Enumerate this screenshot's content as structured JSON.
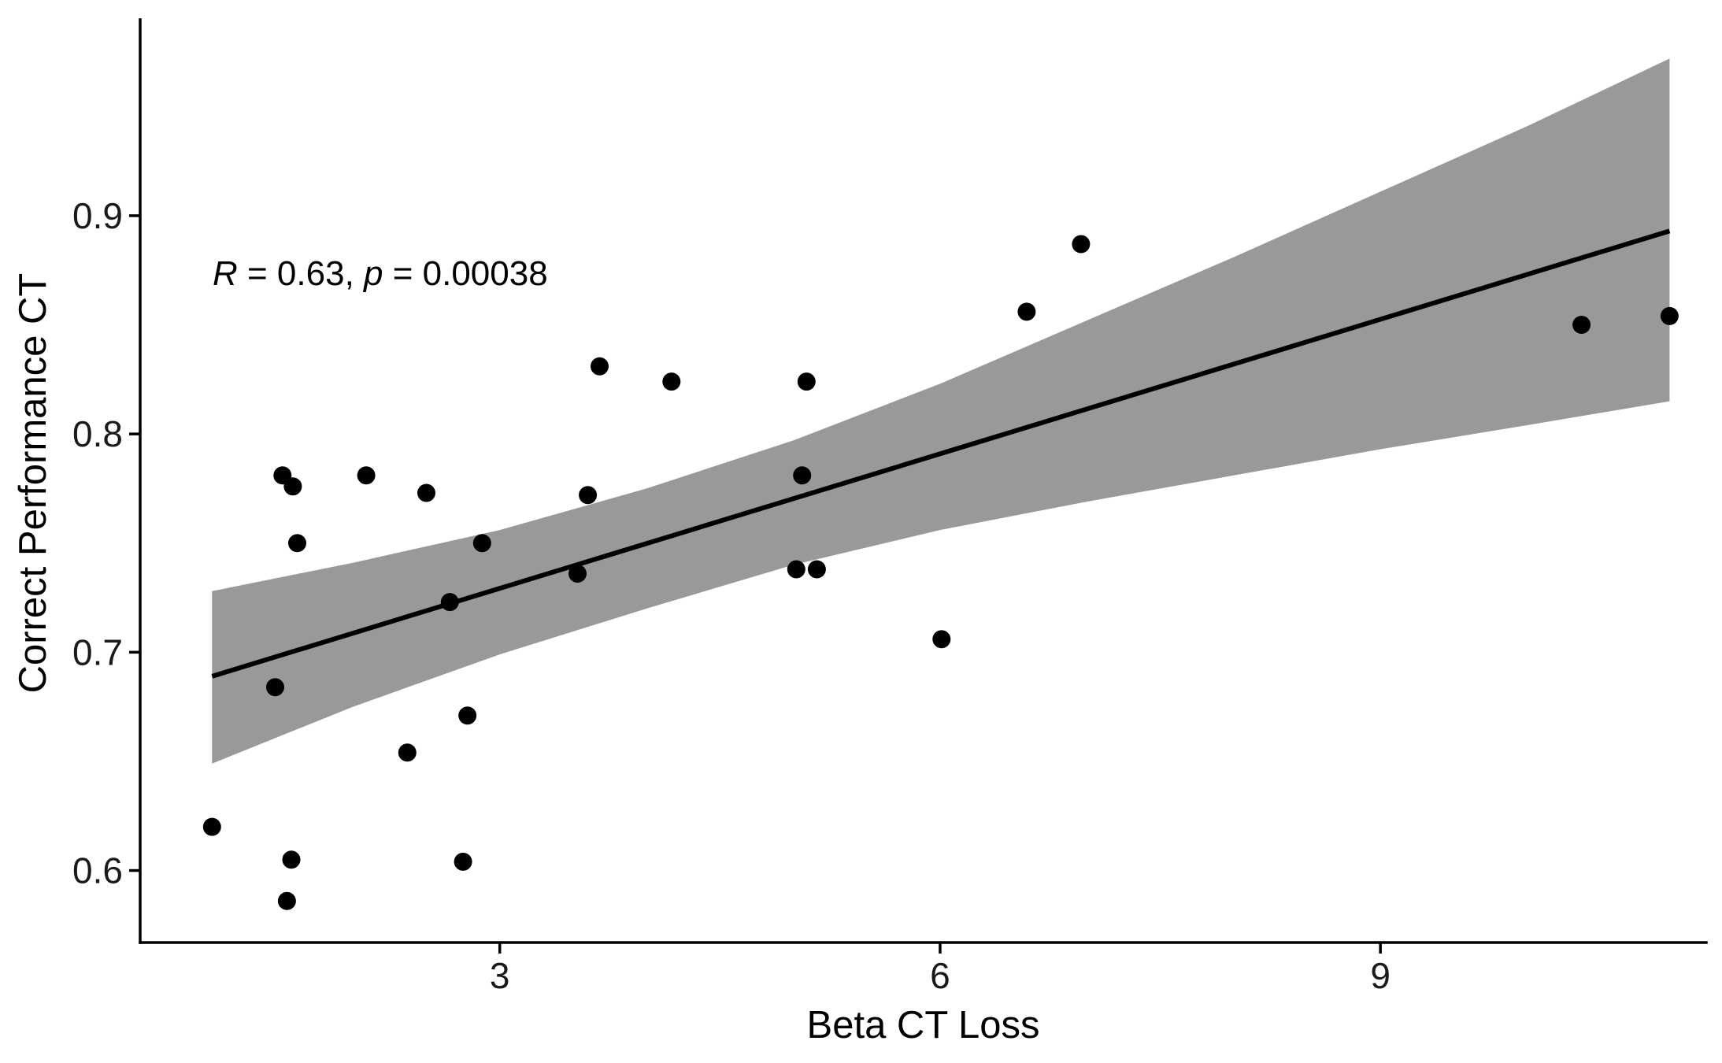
{
  "chart_data": {
    "type": "scatter",
    "title": "",
    "xlabel": "Beta CT Loss",
    "ylabel": "Correct Performance CT",
    "xlim": [
      0.55,
      11.22
    ],
    "ylim": [
      0.567,
      0.988
    ],
    "x_ticks": [
      3,
      6,
      9
    ],
    "x_tick_labels": [
      "3",
      "6",
      "9"
    ],
    "y_ticks": [
      0.6,
      0.7,
      0.8,
      0.9
    ],
    "y_tick_labels": [
      "0.6",
      "0.7",
      "0.8",
      "0.9"
    ],
    "grid": false,
    "legend": "none",
    "points": [
      {
        "x": 1.04,
        "y": 0.62
      },
      {
        "x": 1.47,
        "y": 0.684
      },
      {
        "x": 1.52,
        "y": 0.781
      },
      {
        "x": 1.55,
        "y": 0.586
      },
      {
        "x": 1.58,
        "y": 0.605
      },
      {
        "x": 1.59,
        "y": 0.776
      },
      {
        "x": 1.62,
        "y": 0.75
      },
      {
        "x": 2.09,
        "y": 0.781
      },
      {
        "x": 2.37,
        "y": 0.654
      },
      {
        "x": 2.5,
        "y": 0.773
      },
      {
        "x": 2.66,
        "y": 0.723
      },
      {
        "x": 2.75,
        "y": 0.604
      },
      {
        "x": 2.78,
        "y": 0.671
      },
      {
        "x": 2.88,
        "y": 0.75
      },
      {
        "x": 3.53,
        "y": 0.736
      },
      {
        "x": 3.6,
        "y": 0.772
      },
      {
        "x": 3.68,
        "y": 0.831
      },
      {
        "x": 4.17,
        "y": 0.824
      },
      {
        "x": 5.02,
        "y": 0.738
      },
      {
        "x": 5.06,
        "y": 0.781
      },
      {
        "x": 5.09,
        "y": 0.824
      },
      {
        "x": 5.16,
        "y": 0.738
      },
      {
        "x": 6.01,
        "y": 0.706
      },
      {
        "x": 6.59,
        "y": 0.856
      },
      {
        "x": 6.96,
        "y": 0.887
      },
      {
        "x": 10.37,
        "y": 0.85
      },
      {
        "x": 10.97,
        "y": 0.854
      }
    ],
    "regression_line": {
      "x": [
        1.04,
        10.97
      ],
      "y": [
        0.689,
        0.893
      ]
    },
    "confidence_band": {
      "x": [
        1.04,
        2.0,
        3.0,
        4.0,
        5.0,
        6.0,
        7.0,
        8.0,
        9.0,
        10.0,
        10.97
      ],
      "lower": [
        0.649,
        0.675,
        0.699,
        0.72,
        0.74,
        0.756,
        0.769,
        0.781,
        0.793,
        0.804,
        0.815
      ],
      "upper": [
        0.728,
        0.741,
        0.756,
        0.775,
        0.797,
        0.823,
        0.852,
        0.881,
        0.911,
        0.941,
        0.972
      ]
    },
    "annotation": {
      "r_symbol": "R",
      "r_text": " = 0.63, ",
      "p_symbol": "p",
      "p_text": " = 0.00038"
    },
    "colors": {
      "points": "#000000",
      "line": "#000000",
      "band": "#999999",
      "axis": "#000000"
    }
  }
}
